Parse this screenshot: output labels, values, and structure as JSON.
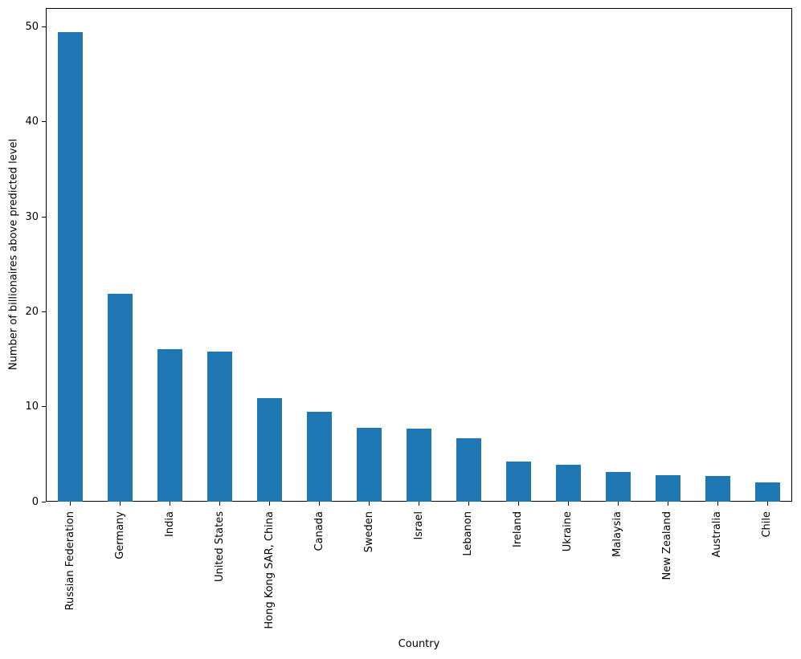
{
  "chart_data": {
    "type": "bar",
    "title": "",
    "xlabel": "Country",
    "ylabel": "Number of billionaires above predicted level",
    "categories": [
      "Russian Federation",
      "Germany",
      "India",
      "United States",
      "Hong Kong SAR, China",
      "Canada",
      "Sweden",
      "Israel",
      "Lebanon",
      "Ireland",
      "Ukraine",
      "Malaysia",
      "New Zealand",
      "Australia",
      "Chile"
    ],
    "values": [
      49.5,
      21.9,
      16.1,
      15.8,
      10.9,
      9.5,
      7.8,
      7.7,
      6.7,
      4.2,
      3.9,
      3.1,
      2.8,
      2.7,
      2.0
    ],
    "yticks": [
      0,
      10,
      20,
      30,
      40,
      50
    ],
    "ylim": [
      0,
      52
    ],
    "bar_color": "#1f77b4",
    "bar_width_fraction": 0.5,
    "grid": false,
    "legend": false
  }
}
